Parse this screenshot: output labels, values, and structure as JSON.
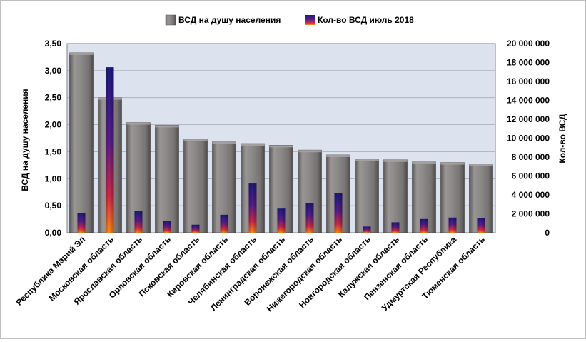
{
  "chart_data": {
    "type": "bar",
    "title": "",
    "legend": {
      "placement": "top",
      "items": [
        "ВСД на душу населения",
        "Кол-во ВСД июль  2018"
      ]
    },
    "categories": [
      "Республика Марий Эл",
      "Московская область",
      "Ярославская область",
      "Орловская область",
      "Псковская область",
      "Кировская область",
      "Челябинская область",
      "Ленинградская область",
      "Воронежская область",
      "Нижегородская область",
      "Новгородская область",
      "Калужская область",
      "Пензенская область",
      "Удмуртская Республика",
      "Тюменская область"
    ],
    "series": [
      {
        "name": "ВСД на душу населения",
        "axis": "left",
        "values": [
          3.33,
          2.5,
          2.04,
          1.99,
          1.73,
          1.69,
          1.65,
          1.62,
          1.53,
          1.44,
          1.36,
          1.35,
          1.31,
          1.3,
          1.27
        ],
        "color": "#8a8787"
      },
      {
        "name": "Кол-во ВСД июль  2018",
        "axis": "right",
        "values": [
          2100000,
          17500000,
          2300000,
          1250000,
          850000,
          1900000,
          5200000,
          2550000,
          3150000,
          4150000,
          650000,
          1100000,
          1450000,
          1600000,
          1550000
        ],
        "color": "#3a1a8a"
      }
    ],
    "y_left": {
      "label": "ВСД на душу населения",
      "range": [
        0,
        3.5
      ],
      "ticks": [
        "0,00",
        "0,50",
        "1,00",
        "1,50",
        "2,00",
        "2,50",
        "3,00",
        "3,50"
      ]
    },
    "y_right": {
      "label": "Кол-во ВСД",
      "range": [
        0,
        20000000
      ],
      "ticks": [
        "0",
        "2 000 000",
        "4 000 000",
        "6 000 000",
        "8 000 000",
        "10 000 000",
        "12 000 000",
        "14 000 000",
        "16 000 000",
        "18 000 000",
        "20 000 000"
      ]
    },
    "grid": true,
    "plot_background": "#dde3ee"
  }
}
